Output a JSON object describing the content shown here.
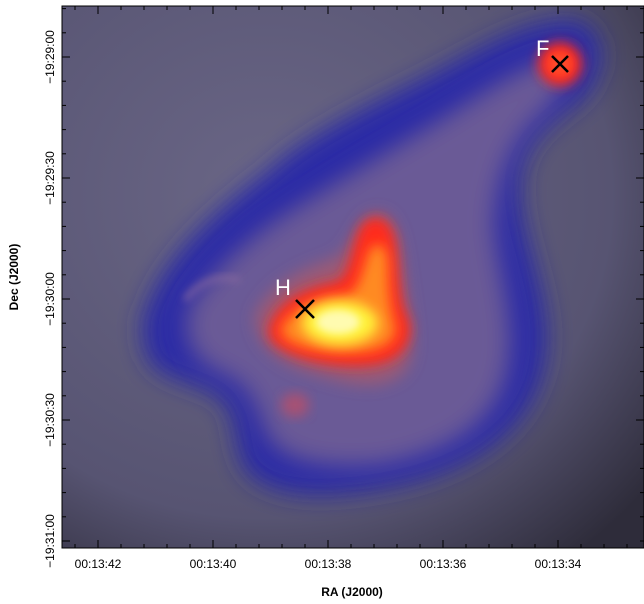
{
  "figure": {
    "xlabel": "RA (J2000)",
    "ylabel": "Dec (J2000)",
    "x_ticks": [
      "00:13:42",
      "00:13:40",
      "00:13:38",
      "00:13:36",
      "00:13:34"
    ],
    "y_ticks": [
      "−19:29:00",
      "−19:29:30",
      "−19:30:00",
      "−19:30:30",
      "−19:31:00"
    ],
    "sources": [
      {
        "label": "F"
      },
      {
        "label": "H"
      }
    ],
    "colors": {
      "background": "#5a5778",
      "low": "#2a2aa8",
      "mid": "#ff2a1a",
      "high": "#fff23a",
      "marker": "#000000",
      "label": "#ffffff"
    }
  }
}
